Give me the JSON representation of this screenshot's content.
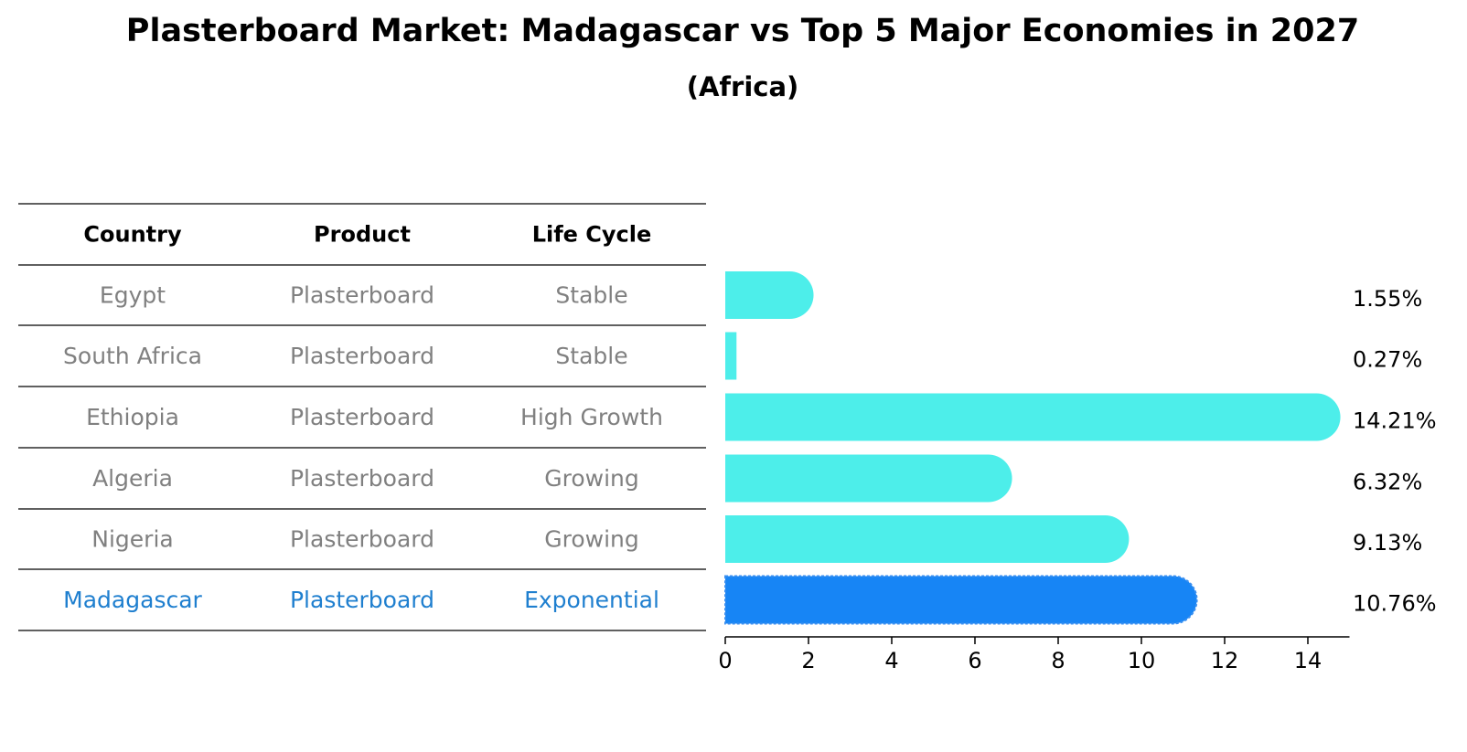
{
  "chart_data": {
    "type": "bar",
    "title": "Plasterboard Market: Madagascar vs Top 5 Major Economies in 2027",
    "subtitle": "(Africa)",
    "table": {
      "headers": [
        "Country",
        "Product",
        "Life Cycle"
      ],
      "rows": [
        [
          "Egypt",
          "Plasterboard",
          "Stable"
        ],
        [
          "South Africa",
          "Plasterboard",
          "Stable"
        ],
        [
          "Ethiopia",
          "Plasterboard",
          "High Growth"
        ],
        [
          "Algeria",
          "Plasterboard",
          "Growing"
        ],
        [
          "Nigeria",
          "Plasterboard",
          "Growing"
        ],
        [
          "Madagascar",
          "Plasterboard",
          "Exponential"
        ]
      ]
    },
    "categories": [
      "Egypt",
      "South Africa",
      "Ethiopia",
      "Algeria",
      "Nigeria",
      "Madagascar"
    ],
    "values": [
      1.55,
      0.27,
      14.21,
      6.32,
      9.13,
      10.76
    ],
    "value_labels": [
      "1.55%",
      "0.27%",
      "14.21%",
      "6.32%",
      "9.13%",
      "10.76%"
    ],
    "highlight": "Madagascar",
    "xlim": [
      0,
      15
    ],
    "xticks": [
      0,
      2,
      4,
      6,
      8,
      10,
      12,
      14
    ],
    "xtick_labels": [
      "0",
      "2",
      "4",
      "6",
      "8",
      "10",
      "12",
      "14"
    ],
    "xlabel": "",
    "ylabel": "",
    "grid": false,
    "colors": {
      "bar": "#4deeea",
      "highlight_bar": "#1785f5",
      "muted_text": "#808080",
      "highlight_text": "#1f7fcf",
      "rule": "#000000"
    }
  }
}
